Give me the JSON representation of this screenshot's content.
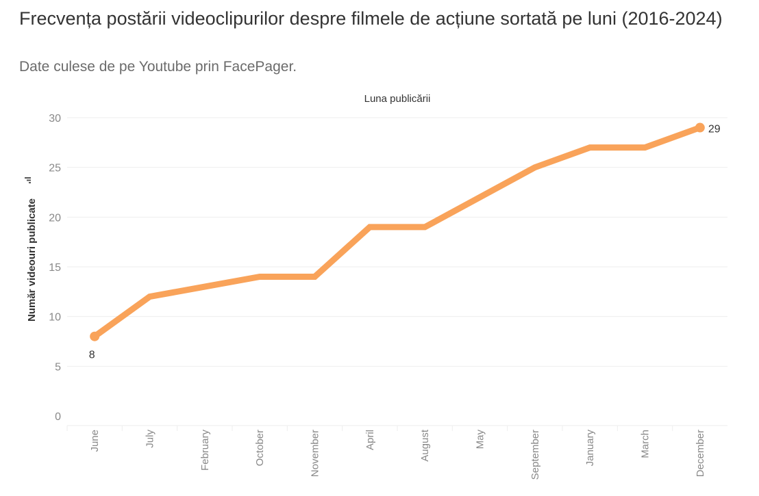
{
  "title": "Frecvența postării videoclipurilor despre filmele de acțiune sortată pe luni (2016-2024)",
  "subtitle": "Date culese de pe Youtube prin FacePager.",
  "colors": {
    "line": "#f9a35a",
    "grid": "#eeeeee",
    "tick_text": "#888888",
    "label_text": "#333333"
  },
  "chart_data": {
    "type": "line",
    "title": "Frecvența postării videoclipurilor despre filmele de acțiune sortată pe luni (2016-2024)",
    "xlabel": "Luna publicării",
    "ylabel": "Număr videouri publicate",
    "ylim": [
      0,
      30
    ],
    "yticks": [
      0,
      5,
      10,
      15,
      20,
      25,
      30
    ],
    "grid": true,
    "categories": [
      "June",
      "July",
      "February",
      "October",
      "November",
      "April",
      "August",
      "May",
      "September",
      "January",
      "March",
      "December"
    ],
    "values": [
      8,
      12,
      13,
      14,
      14,
      19,
      19,
      22,
      25,
      27,
      27,
      29
    ],
    "labeled_points": [
      {
        "category": "June",
        "value": 8,
        "label": "8"
      },
      {
        "category": "December",
        "value": 29,
        "label": "29"
      }
    ]
  }
}
